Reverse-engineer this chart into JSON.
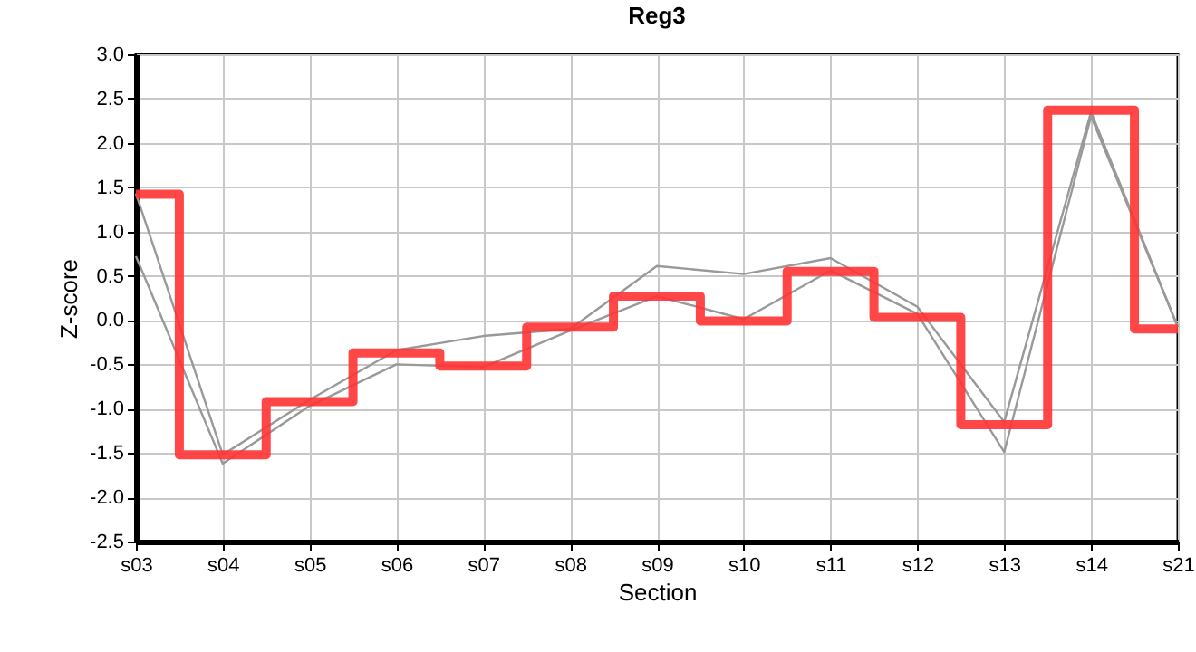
{
  "chart_data": {
    "type": "line",
    "title": "Reg3",
    "xlabel": "Section",
    "ylabel": "Z-score",
    "categories": [
      "s03",
      "s04",
      "s05",
      "s06",
      "s07",
      "s08",
      "s09",
      "s10",
      "s11",
      "s12",
      "s13",
      "s14",
      "s21"
    ],
    "series": [
      {
        "color": "#999999",
        "values": [
          1.43,
          -1.52,
          -0.9,
          -0.34,
          -0.18,
          -0.1,
          0.61,
          0.52,
          0.7,
          0.15,
          -1.15,
          2.35,
          -0.08
        ]
      },
      {
        "color": "#999999",
        "values": [
          0.72,
          -1.62,
          -0.97,
          -0.5,
          -0.53,
          -0.12,
          0.27,
          0.01,
          0.56,
          0.07,
          -1.49,
          2.3,
          -0.08
        ]
      },
      {
        "type": "step",
        "color": "#ff3333",
        "values": [
          1.42,
          -1.52,
          -0.92,
          -0.37,
          -0.52,
          -0.08,
          0.27,
          -0.01,
          0.55,
          0.03,
          -1.18,
          2.37,
          -0.1
        ]
      }
    ],
    "ylim": [
      -2.5,
      3.0
    ],
    "yticks": [
      -2.5,
      {
        "value": -2,
        "label": "-2.0"
      },
      -1.5,
      {
        "value": -1,
        "label": "-1.0"
      },
      -0.5,
      {
        "value": 0,
        "label": "0.0"
      },
      0.5,
      {
        "value": 1,
        "label": "1.0"
      },
      1.5,
      {
        "value": 2,
        "label": "2.0"
      },
      2.5,
      {
        "value": 3,
        "label": "3.0"
      }
    ],
    "grid": true
  }
}
